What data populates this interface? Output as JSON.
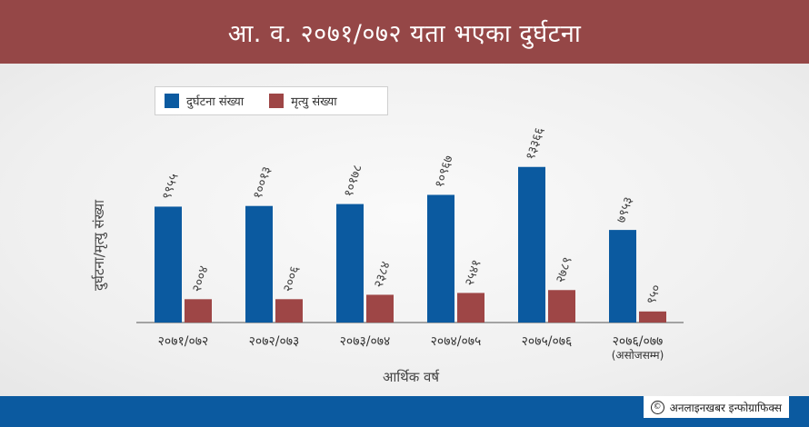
{
  "header": {
    "title": "आ. व. २०७१/०७२ यता भएका दुर्घटना"
  },
  "credit": {
    "text": "अनलाइनखबर इन्फोग्राफिक्स"
  },
  "colors": {
    "series_accidents": "#0b5aa0",
    "series_deaths": "#9e4646",
    "header_bg": "#954747"
  },
  "chart_data": {
    "type": "bar",
    "title": "आ. व. २०७१/०७२ यता भएका दुर्घटना",
    "xlabel": "आर्थिक वर्ष",
    "ylabel": "दुर्घटना/मृत्यु संख्या",
    "categories": [
      "२०७१/०७२",
      "२०७२/०७३",
      "२०७३/०७४",
      "२०७४/०७५",
      "२०७५/०७६",
      "२०७६/०७७"
    ],
    "category_notes": [
      "",
      "",
      "",
      "",
      "",
      "(असोजसम्म)"
    ],
    "series": [
      {
        "name": "दुर्घटना संख्या",
        "values": [
          9955,
          10013,
          10178,
          10967,
          13366,
          7953
        ],
        "labels": [
          "९९५५",
          "१००१३",
          "१०१७८",
          "१०९६७",
          "१३३६६",
          "७९५३"
        ]
      },
      {
        "name": "मृत्यु संख्या",
        "values": [
          2004,
          2006,
          2384,
          2541,
          2789,
          950
        ],
        "labels": [
          "२००४",
          "२००६",
          "२३८४",
          "२५४१",
          "२७८९",
          "९५०"
        ]
      }
    ],
    "ylim": [
      0,
      16000
    ],
    "grid": false,
    "legend_position": "top-left"
  }
}
